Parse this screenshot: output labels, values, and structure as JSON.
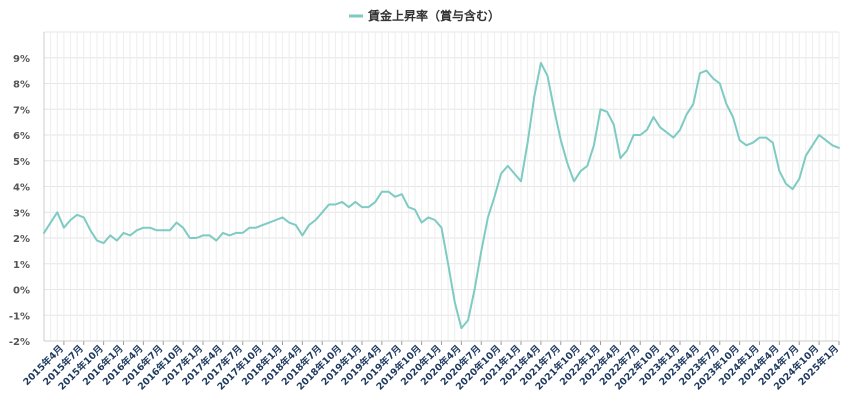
{
  "chart_data": {
    "type": "line",
    "legend": {
      "position": "top-center"
    },
    "grid": true,
    "ylim": [
      -2,
      10
    ],
    "yticks": [
      -2,
      -1,
      0,
      1,
      2,
      3,
      4,
      5,
      6,
      7,
      8,
      9
    ],
    "ytick_labels": [
      "-2%",
      "-1%",
      "0%",
      "1%",
      "2%",
      "3%",
      "4%",
      "5%",
      "6%",
      "7%",
      "8%",
      "9%"
    ],
    "x_start": "2015-01",
    "tick_labels": [
      "2015年4月",
      "2015年7月",
      "2015年10月",
      "2016年1月",
      "2016年4月",
      "2016年7月",
      "2016年10月",
      "2017年1月",
      "2017年4月",
      "2017年7月",
      "2017年10月",
      "2018年1月",
      "2018年4月",
      "2018年7月",
      "2018年10月",
      "2019年1月",
      "2019年4月",
      "2019年7月",
      "2019年10月",
      "2020年1月",
      "2020年4月",
      "2020年7月",
      "2020年10月",
      "2021年1月",
      "2021年4月",
      "2021年7月",
      "2021年10月",
      "2022年1月",
      "2022年4月",
      "2022年7月",
      "2022年10月",
      "2023年1月",
      "2023年4月",
      "2023年7月",
      "2023年10月",
      "2024年1月",
      "2024年4月",
      "2024年7月",
      "2024年10月",
      "2025年1月"
    ],
    "series": [
      {
        "name": "賃金上昇率（賞与含む）",
        "color": "#7ecbc3",
        "values": [
          2.2,
          2.6,
          3.0,
          2.4,
          2.7,
          2.9,
          2.8,
          2.3,
          1.9,
          1.8,
          2.1,
          1.9,
          2.2,
          2.1,
          2.3,
          2.4,
          2.4,
          2.3,
          2.3,
          2.3,
          2.6,
          2.4,
          2.0,
          2.0,
          2.1,
          2.1,
          1.9,
          2.2,
          2.1,
          2.2,
          2.2,
          2.4,
          2.4,
          2.5,
          2.6,
          2.7,
          2.8,
          2.6,
          2.5,
          2.1,
          2.5,
          2.7,
          3.0,
          3.3,
          3.3,
          3.4,
          3.2,
          3.4,
          3.2,
          3.2,
          3.4,
          3.8,
          3.8,
          3.6,
          3.7,
          3.2,
          3.1,
          2.6,
          2.8,
          2.7,
          2.4,
          1.0,
          -0.5,
          -1.5,
          -1.2,
          0.0,
          1.5,
          2.8,
          3.6,
          4.5,
          4.8,
          4.5,
          4.2,
          5.7,
          7.5,
          8.8,
          8.3,
          7.0,
          5.8,
          4.9,
          4.2,
          4.6,
          4.8,
          5.6,
          7.0,
          6.9,
          6.4,
          5.1,
          5.4,
          6.0,
          6.0,
          6.2,
          6.7,
          6.3,
          6.1,
          5.9,
          6.2,
          6.8,
          7.2,
          8.4,
          8.5,
          8.2,
          8.0,
          7.2,
          6.7,
          5.8,
          5.6,
          5.7,
          5.9,
          5.9,
          5.7,
          4.6,
          4.1,
          3.9,
          4.3,
          5.2,
          5.6,
          6.0,
          5.8,
          5.6,
          5.5
        ]
      }
    ]
  }
}
